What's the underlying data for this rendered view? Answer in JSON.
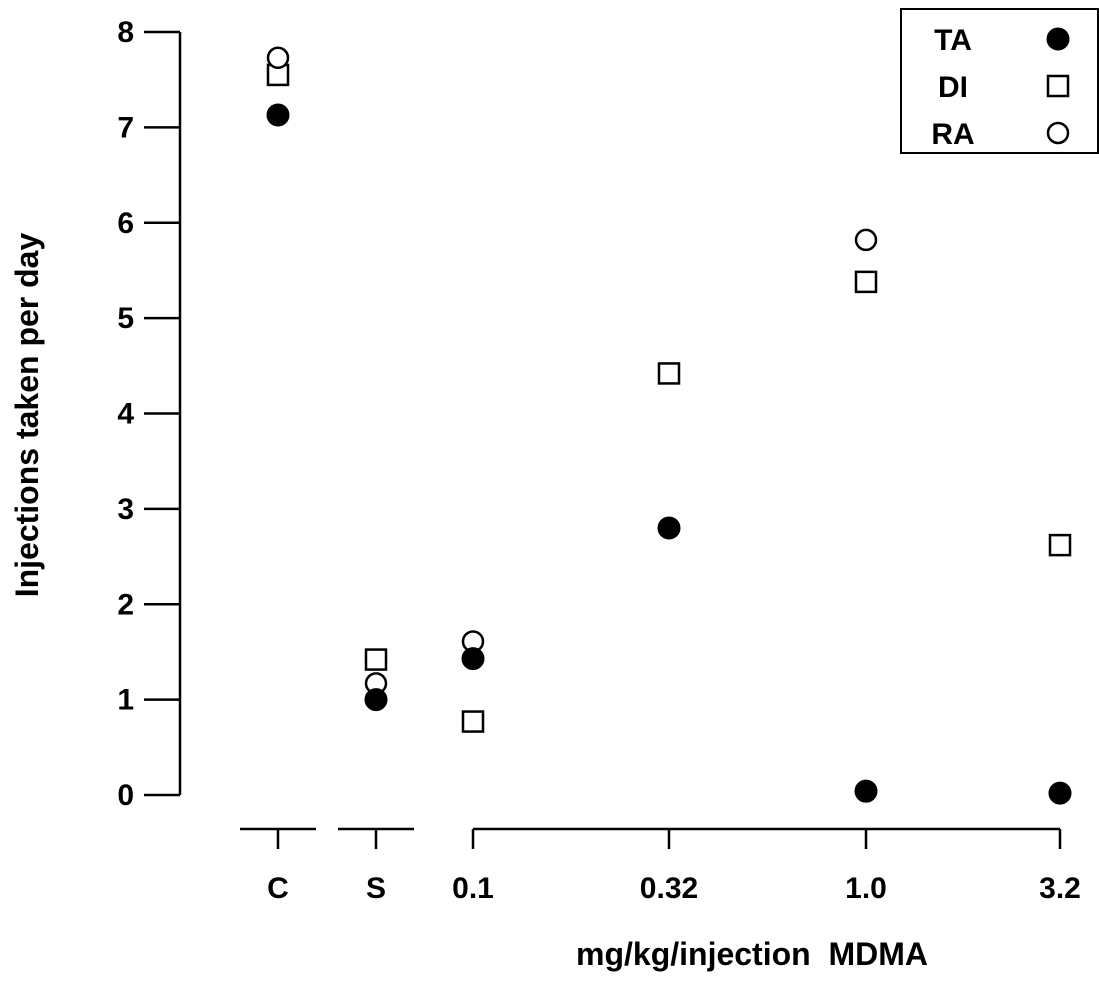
{
  "chart_data": {
    "type": "scatter",
    "title": "",
    "xlabel": "mg/kg/injection  MDMA",
    "ylabel": "Injections taken per day",
    "ylim": [
      0,
      8
    ],
    "yticks": [
      "0",
      "1",
      "2",
      "3",
      "4",
      "5",
      "6",
      "7",
      "8"
    ],
    "categories": [
      "C",
      "S",
      "0.1",
      "0.32",
      "1.0",
      "3.2"
    ],
    "category_groups": [
      [
        "C"
      ],
      [
        "S"
      ],
      [
        "0.1",
        "0.32",
        "1.0",
        "3.2"
      ]
    ],
    "grid": false,
    "legend_position": "top-right",
    "series": [
      {
        "name": "TA",
        "marker": "filled-circle",
        "values": [
          7.13,
          1.0,
          1.43,
          2.8,
          0.04,
          0.02
        ]
      },
      {
        "name": "DI",
        "marker": "open-square",
        "values": [
          7.55,
          1.42,
          0.77,
          4.42,
          5.38,
          2.62
        ]
      },
      {
        "name": "RA",
        "marker": "open-circle",
        "values": [
          7.73,
          1.17,
          1.61,
          null,
          5.82,
          null
        ]
      }
    ]
  }
}
